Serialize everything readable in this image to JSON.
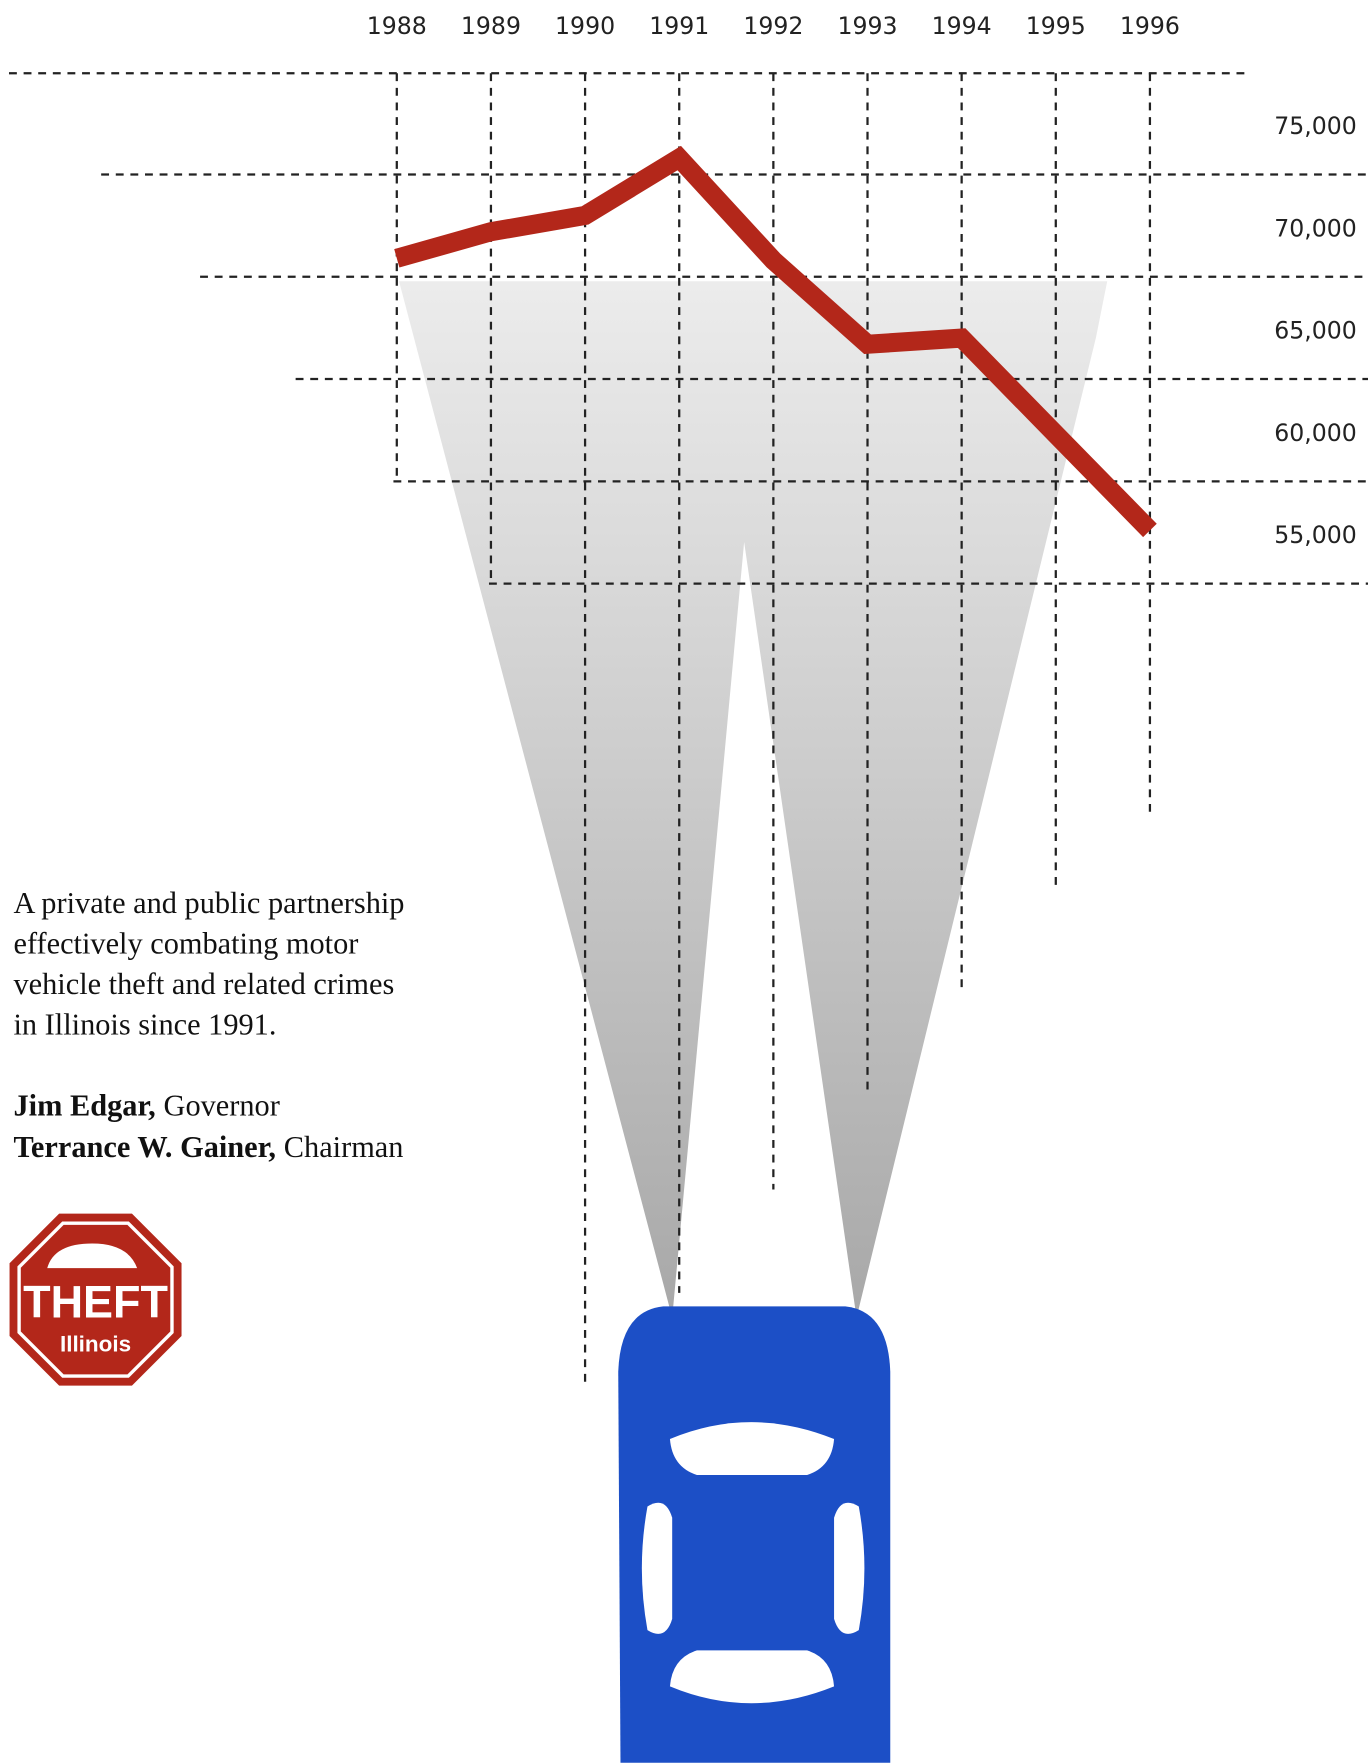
{
  "chart_data": {
    "type": "line",
    "x": [
      1988,
      1989,
      1990,
      1991,
      1992,
      1993,
      1994,
      1995,
      1996
    ],
    "xlim": [
      1988,
      1996
    ],
    "xticks": [
      1988,
      1989,
      1990,
      1991,
      1992,
      1993,
      1994,
      1995,
      1996
    ],
    "series": [
      {
        "color": "#b3271a",
        "values": [
          70900,
          72200,
          73000,
          75800,
          70800,
          66700,
          67000,
          62300,
          57600
        ]
      }
    ],
    "ylim": [
      55000,
      75000
    ],
    "yticks": [
      {
        "value": 75000,
        "label": "75,000"
      },
      {
        "value": 70000,
        "label": "70,000"
      },
      {
        "value": 65000,
        "label": "65,000"
      },
      {
        "value": 60000,
        "label": "60,000"
      },
      {
        "value": 55000,
        "label": "55,000"
      }
    ],
    "grid": true
  },
  "text": {
    "lines": [
      "A private and public partnership",
      "effectively combating motor",
      "vehicle theft and related crimes",
      "in Illinois since 1991."
    ],
    "signatures": [
      {
        "name": "Jim Edgar,",
        "role": "Governor"
      },
      {
        "name": "Terrance W. Gainer,",
        "role": "Chairman"
      }
    ]
  },
  "logo": {
    "top": "THEFT",
    "bottom": "Illinois"
  }
}
